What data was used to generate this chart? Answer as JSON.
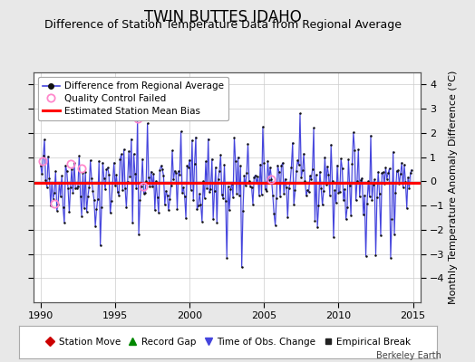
{
  "title": "TWIN BUTTES IDAHO",
  "subtitle": "Difference of Station Temperature Data from Regional Average",
  "ylabel": "Monthly Temperature Anomaly Difference (°C)",
  "xlim": [
    1989.5,
    2015.5
  ],
  "ylim": [
    -5,
    4.5
  ],
  "yticks": [
    -4,
    -3,
    -2,
    -1,
    0,
    1,
    2,
    3,
    4
  ],
  "xticks": [
    1990,
    1995,
    2000,
    2005,
    2010,
    2015
  ],
  "mean_bias": -0.05,
  "background_color": "#e8e8e8",
  "plot_bg_color": "#ffffff",
  "line_color": "#4444dd",
  "line_fill_color": "#aaaaee",
  "bias_color": "#ff0000",
  "marker_color": "#111111",
  "qc_fail_color": "#ff88cc",
  "seed": 42,
  "legend1_items": [
    {
      "label": "Difference from Regional Average",
      "color": "#4444dd"
    },
    {
      "label": "Quality Control Failed",
      "color": "#ff88cc"
    },
    {
      "label": "Estimated Station Mean Bias",
      "color": "#ff0000"
    }
  ],
  "legend2_items": [
    {
      "label": "Station Move",
      "color": "#cc0000",
      "marker": "D"
    },
    {
      "label": "Record Gap",
      "color": "#008800",
      "marker": "^"
    },
    {
      "label": "Time of Obs. Change",
      "color": "#4444dd",
      "marker": "v"
    },
    {
      "label": "Empirical Break",
      "color": "#222222",
      "marker": "s"
    }
  ],
  "qc_fail_points_x": [
    1990.1,
    1990.9,
    1992.0,
    1992.75,
    1996.5,
    1996.9,
    2005.5
  ],
  "qc_fail_points_y": [
    0.85,
    -0.92,
    0.72,
    0.52,
    2.6,
    -0.2,
    0.08
  ],
  "title_fontsize": 12,
  "subtitle_fontsize": 9,
  "axis_label_fontsize": 8,
  "tick_fontsize": 8,
  "legend_fontsize": 7.5,
  "watermark": "Berkeley Earth",
  "watermark_fontsize": 7
}
